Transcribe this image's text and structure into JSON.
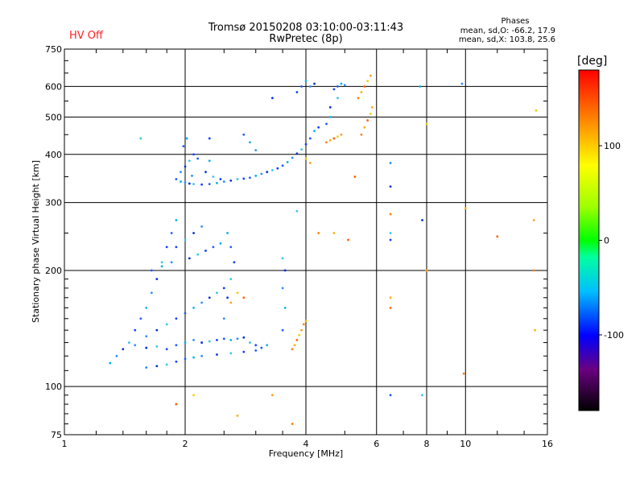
{
  "header": {
    "hv_status": "HV Off",
    "title_line1": "Tromsø 20150208 03:10:00-03:11:43",
    "title_line2": "RwPretec (8p)",
    "phases_heading": "Phases",
    "stats_line1": "mean, sd,O: -66.2, 17.9",
    "stats_line2": "mean, sd,X: 103.8, 25.6"
  },
  "chart_data": {
    "type": "scatter",
    "xlabel": "Frequency [MHz]",
    "ylabel": "Stationary phase Virtual Height [km]",
    "x_scale": "log",
    "y_scale": "log",
    "xlim": [
      1,
      16
    ],
    "ylim": [
      75,
      750
    ],
    "x_ticks": [
      1,
      2,
      4,
      6,
      8,
      10,
      16
    ],
    "x_tick_labels": [
      "1",
      "2",
      "4",
      "6",
      "8",
      "10",
      "16"
    ],
    "y_ticks": [
      75,
      100,
      200,
      300,
      400,
      500,
      600,
      750
    ],
    "y_tick_labels": [
      "75",
      "100",
      "200",
      "300",
      "400",
      "500",
      "600",
      "750"
    ],
    "grid": true,
    "colorbar": {
      "label": "[deg]",
      "range": [
        -180,
        180
      ],
      "ticks": [
        -100,
        0,
        100
      ],
      "tick_labels": [
        "-100",
        "0",
        "100"
      ]
    },
    "series": [
      {
        "mode": "O",
        "points": [
          [
            1.9,
            345
          ],
          [
            1.95,
            340
          ],
          [
            2.0,
            338
          ],
          [
            2.05,
            336
          ],
          [
            2.1,
            335
          ],
          [
            2.2,
            334
          ],
          [
            2.3,
            335
          ],
          [
            2.4,
            337
          ],
          [
            2.5,
            340
          ],
          [
            2.6,
            342
          ],
          [
            2.7,
            345
          ],
          [
            2.8,
            346
          ],
          [
            2.9,
            348
          ],
          [
            3.0,
            352
          ],
          [
            3.1,
            356
          ],
          [
            3.2,
            360
          ],
          [
            3.3,
            364
          ],
          [
            3.4,
            368
          ],
          [
            3.5,
            374
          ],
          [
            3.6,
            382
          ],
          [
            3.7,
            392
          ],
          [
            3.8,
            402
          ],
          [
            3.9,
            412
          ],
          [
            4.0,
            425
          ],
          [
            4.1,
            440
          ],
          [
            4.2,
            460
          ],
          [
            1.95,
            360
          ],
          [
            2.0,
            372
          ],
          [
            2.05,
            385
          ],
          [
            2.1,
            400
          ],
          [
            1.98,
            420
          ],
          [
            2.02,
            440
          ],
          [
            2.08,
            352
          ],
          [
            2.25,
            360
          ],
          [
            2.35,
            350
          ],
          [
            2.45,
            345
          ],
          [
            2.15,
            390
          ],
          [
            2.3,
            385
          ],
          [
            1.6,
            112
          ],
          [
            1.7,
            113
          ],
          [
            1.8,
            114
          ],
          [
            1.9,
            116
          ],
          [
            2.0,
            118
          ],
          [
            2.1,
            119
          ],
          [
            2.2,
            120
          ],
          [
            2.4,
            121
          ],
          [
            2.6,
            122
          ],
          [
            2.8,
            123
          ],
          [
            3.0,
            124
          ],
          [
            1.3,
            115
          ],
          [
            1.35,
            120
          ],
          [
            1.4,
            125
          ],
          [
            1.45,
            130
          ],
          [
            1.5,
            140
          ],
          [
            1.55,
            150
          ],
          [
            1.6,
            160
          ],
          [
            1.65,
            175
          ],
          [
            1.7,
            190
          ],
          [
            1.75,
            210
          ],
          [
            1.8,
            230
          ],
          [
            1.85,
            250
          ],
          [
            1.9,
            270
          ],
          [
            1.6,
            135
          ],
          [
            1.7,
            140
          ],
          [
            1.8,
            145
          ],
          [
            1.9,
            150
          ],
          [
            2.0,
            155
          ],
          [
            2.1,
            160
          ],
          [
            2.2,
            165
          ],
          [
            2.3,
            170
          ],
          [
            2.4,
            175
          ],
          [
            2.5,
            180
          ],
          [
            1.65,
            200
          ],
          [
            1.75,
            205
          ],
          [
            1.85,
            210
          ],
          [
            2.05,
            215
          ],
          [
            2.15,
            220
          ],
          [
            2.25,
            225
          ],
          [
            2.35,
            230
          ],
          [
            2.45,
            235
          ],
          [
            1.5,
            128
          ],
          [
            1.6,
            126
          ],
          [
            1.7,
            127
          ],
          [
            1.8,
            125
          ],
          [
            1.9,
            128
          ],
          [
            2.0,
            130
          ],
          [
            2.1,
            132
          ],
          [
            2.2,
            130
          ],
          [
            2.3,
            131
          ],
          [
            2.4,
            132
          ],
          [
            2.5,
            133
          ],
          [
            2.6,
            132
          ],
          [
            2.7,
            133
          ],
          [
            2.8,
            134
          ],
          [
            2.9,
            130
          ],
          [
            3.0,
            128
          ],
          [
            3.1,
            126
          ],
          [
            3.2,
            128
          ],
          [
            2.5,
            150
          ],
          [
            2.55,
            170
          ],
          [
            2.6,
            190
          ],
          [
            2.65,
            210
          ],
          [
            2.6,
            230
          ],
          [
            2.55,
            250
          ],
          [
            2.2,
            260
          ],
          [
            2.1,
            250
          ],
          [
            2.0,
            240
          ],
          [
            1.9,
            230
          ],
          [
            3.5,
            140
          ],
          [
            3.55,
            160
          ],
          [
            3.5,
            180
          ],
          [
            3.55,
            200
          ],
          [
            3.5,
            215
          ],
          [
            4.7,
            590
          ],
          [
            4.8,
            600
          ],
          [
            4.9,
            610
          ],
          [
            5.0,
            605
          ],
          [
            4.6,
            530
          ],
          [
            4.8,
            560
          ],
          [
            4.3,
            470
          ],
          [
            4.5,
            480
          ],
          [
            4.6,
            500
          ],
          [
            6.5,
            380
          ],
          [
            6.5,
            330
          ],
          [
            6.5,
            250
          ],
          [
            6.5,
            240
          ],
          [
            6.5,
            95
          ],
          [
            7.7,
            600
          ],
          [
            9.8,
            610
          ],
          [
            7.8,
            270
          ],
          [
            7.8,
            95
          ],
          [
            3.8,
            580
          ],
          [
            3.9,
            600
          ],
          [
            4.0,
            620
          ],
          [
            4.1,
            600
          ],
          [
            4.2,
            610
          ],
          [
            1.55,
            440
          ],
          [
            2.3,
            440
          ],
          [
            2.8,
            450
          ],
          [
            2.9,
            430
          ],
          [
            3.0,
            410
          ],
          [
            3.3,
            560
          ],
          [
            3.8,
            285
          ]
        ]
      },
      {
        "mode": "X",
        "points": [
          [
            4.5,
            430
          ],
          [
            4.6,
            435
          ],
          [
            4.7,
            440
          ],
          [
            4.8,
            445
          ],
          [
            4.9,
            450
          ],
          [
            5.5,
            450
          ],
          [
            5.6,
            470
          ],
          [
            5.7,
            490
          ],
          [
            5.8,
            510
          ],
          [
            5.85,
            530
          ],
          [
            5.4,
            560
          ],
          [
            5.5,
            580
          ],
          [
            5.6,
            600
          ],
          [
            5.7,
            620
          ],
          [
            5.8,
            640
          ],
          [
            3.7,
            125
          ],
          [
            3.75,
            128
          ],
          [
            3.8,
            132
          ],
          [
            3.85,
            136
          ],
          [
            3.9,
            140
          ],
          [
            3.95,
            145
          ],
          [
            4.0,
            148
          ],
          [
            2.8,
            170
          ],
          [
            2.7,
            175
          ],
          [
            2.6,
            165
          ],
          [
            6.5,
            280
          ],
          [
            6.5,
            170
          ],
          [
            6.5,
            160
          ],
          [
            4.0,
            390
          ],
          [
            4.1,
            380
          ],
          [
            4.3,
            250
          ],
          [
            4.7,
            250
          ],
          [
            5.1,
            240
          ],
          [
            8.0,
            480
          ],
          [
            8.0,
            200
          ],
          [
            9.9,
            108
          ],
          [
            10.0,
            290
          ],
          [
            12.0,
            245
          ],
          [
            15.0,
            520
          ],
          [
            14.8,
            270
          ],
          [
            14.8,
            200
          ],
          [
            14.9,
            140
          ],
          [
            1.9,
            90
          ],
          [
            2.1,
            95
          ],
          [
            3.3,
            95
          ],
          [
            3.7,
            80
          ],
          [
            2.7,
            84
          ],
          [
            5.3,
            350
          ]
        ]
      }
    ]
  },
  "colors": {
    "title_hv": "#ff2020",
    "grid": "#000000",
    "axis": "#000000"
  }
}
